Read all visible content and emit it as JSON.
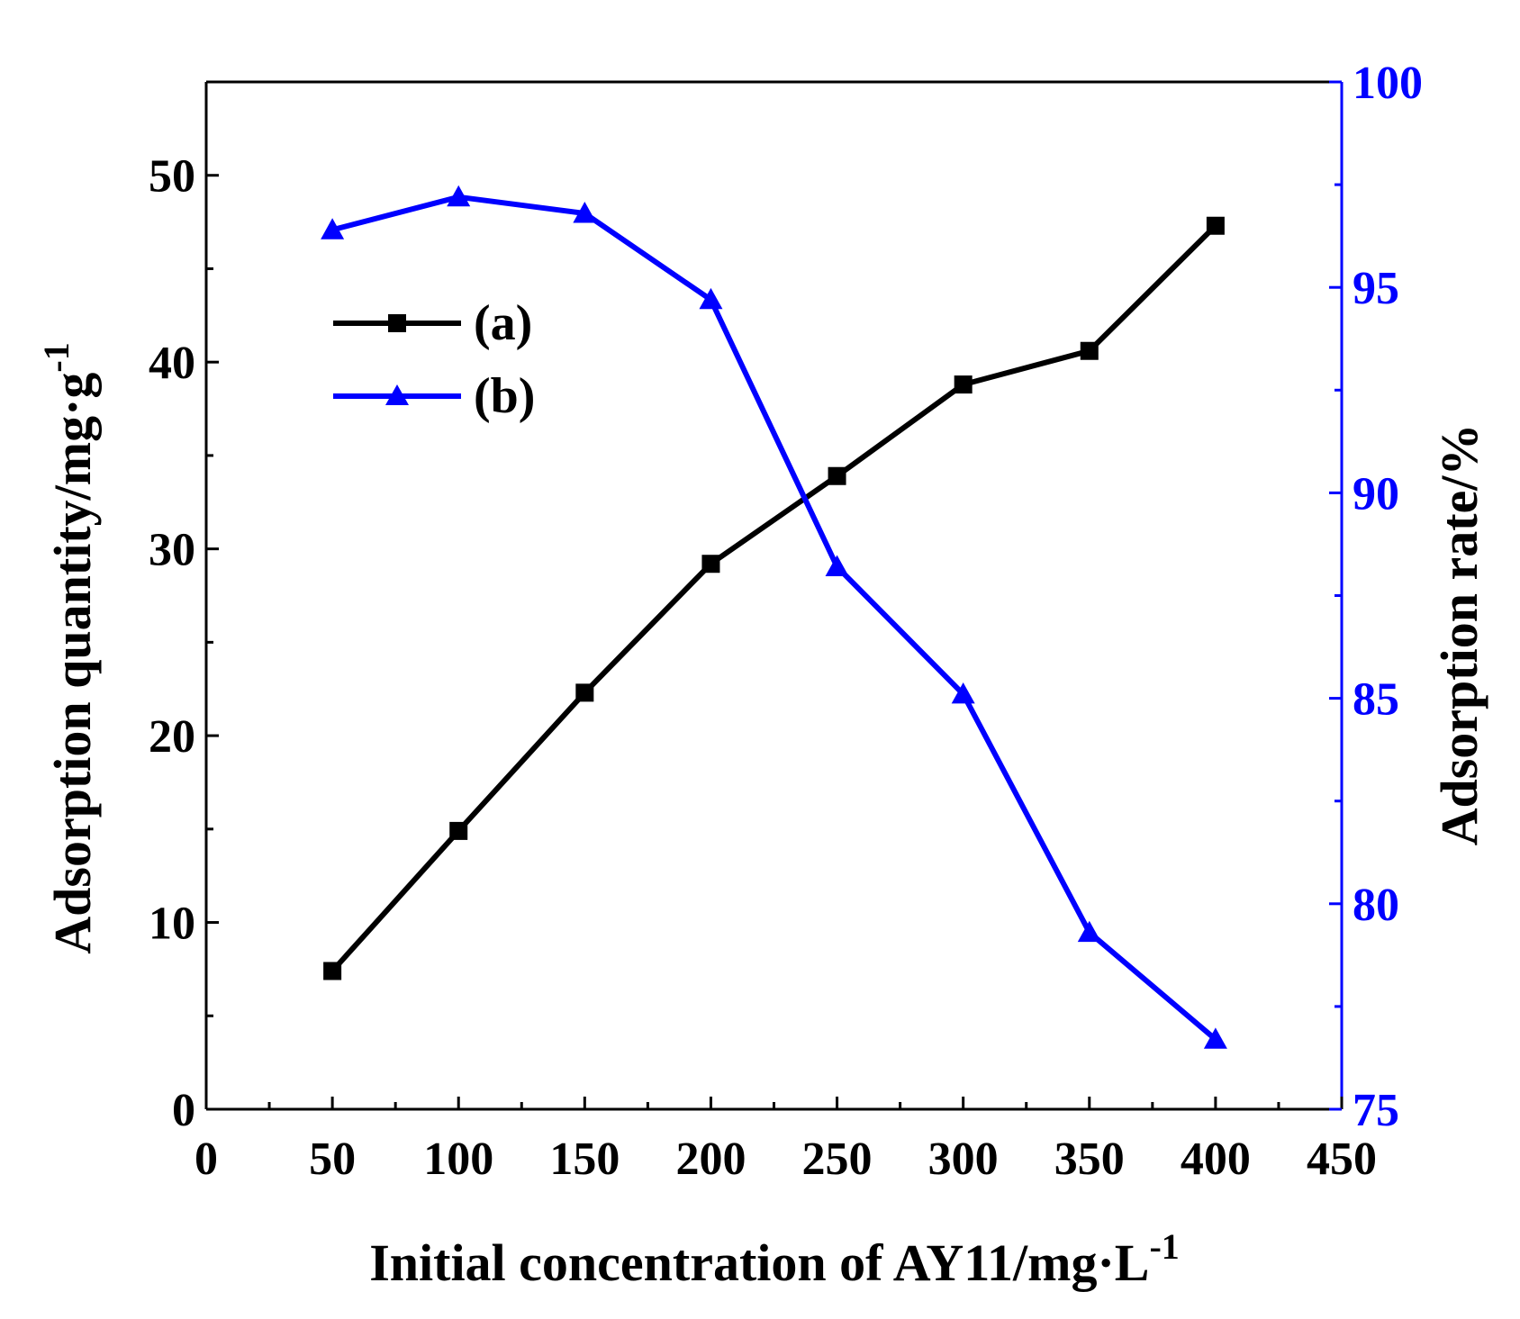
{
  "chart_data": {
    "type": "line",
    "title": "",
    "x": [
      50,
      100,
      150,
      200,
      250,
      300,
      350,
      400
    ],
    "xlabel": {
      "main": "Initial concentration of AY11/mg·L",
      "superscript": "-1"
    },
    "xlim": [
      0,
      450
    ],
    "xticks": [
      "0",
      "50",
      "100",
      "150",
      "200",
      "250",
      "300",
      "350",
      "400",
      "450"
    ],
    "y_left": {
      "label": {
        "main": "Adsorption quantity/mg·g",
        "superscript": "-1"
      },
      "ylim": [
        0,
        55
      ],
      "ticks": [
        "0",
        "10",
        "20",
        "30",
        "40",
        "50"
      ],
      "color": "#000000"
    },
    "y_right": {
      "label": "Adsorption rate/%",
      "ylim": [
        75,
        100
      ],
      "ticks": [
        "75",
        "80",
        "85",
        "90",
        "95",
        "100"
      ],
      "color": "#0000ff"
    },
    "series": [
      {
        "name": "(a)",
        "axis": "left",
        "marker": "square",
        "color": "#000000",
        "values": [
          7.4,
          14.9,
          22.3,
          29.2,
          33.9,
          38.8,
          40.6,
          47.3
        ]
      },
      {
        "name": "(b)",
        "axis": "right",
        "marker": "triangle",
        "color": "#0000ff",
        "values": [
          96.4,
          97.2,
          96.8,
          94.7,
          88.2,
          85.1,
          79.3,
          76.7
        ]
      }
    ],
    "legend_position": "upper-left"
  }
}
